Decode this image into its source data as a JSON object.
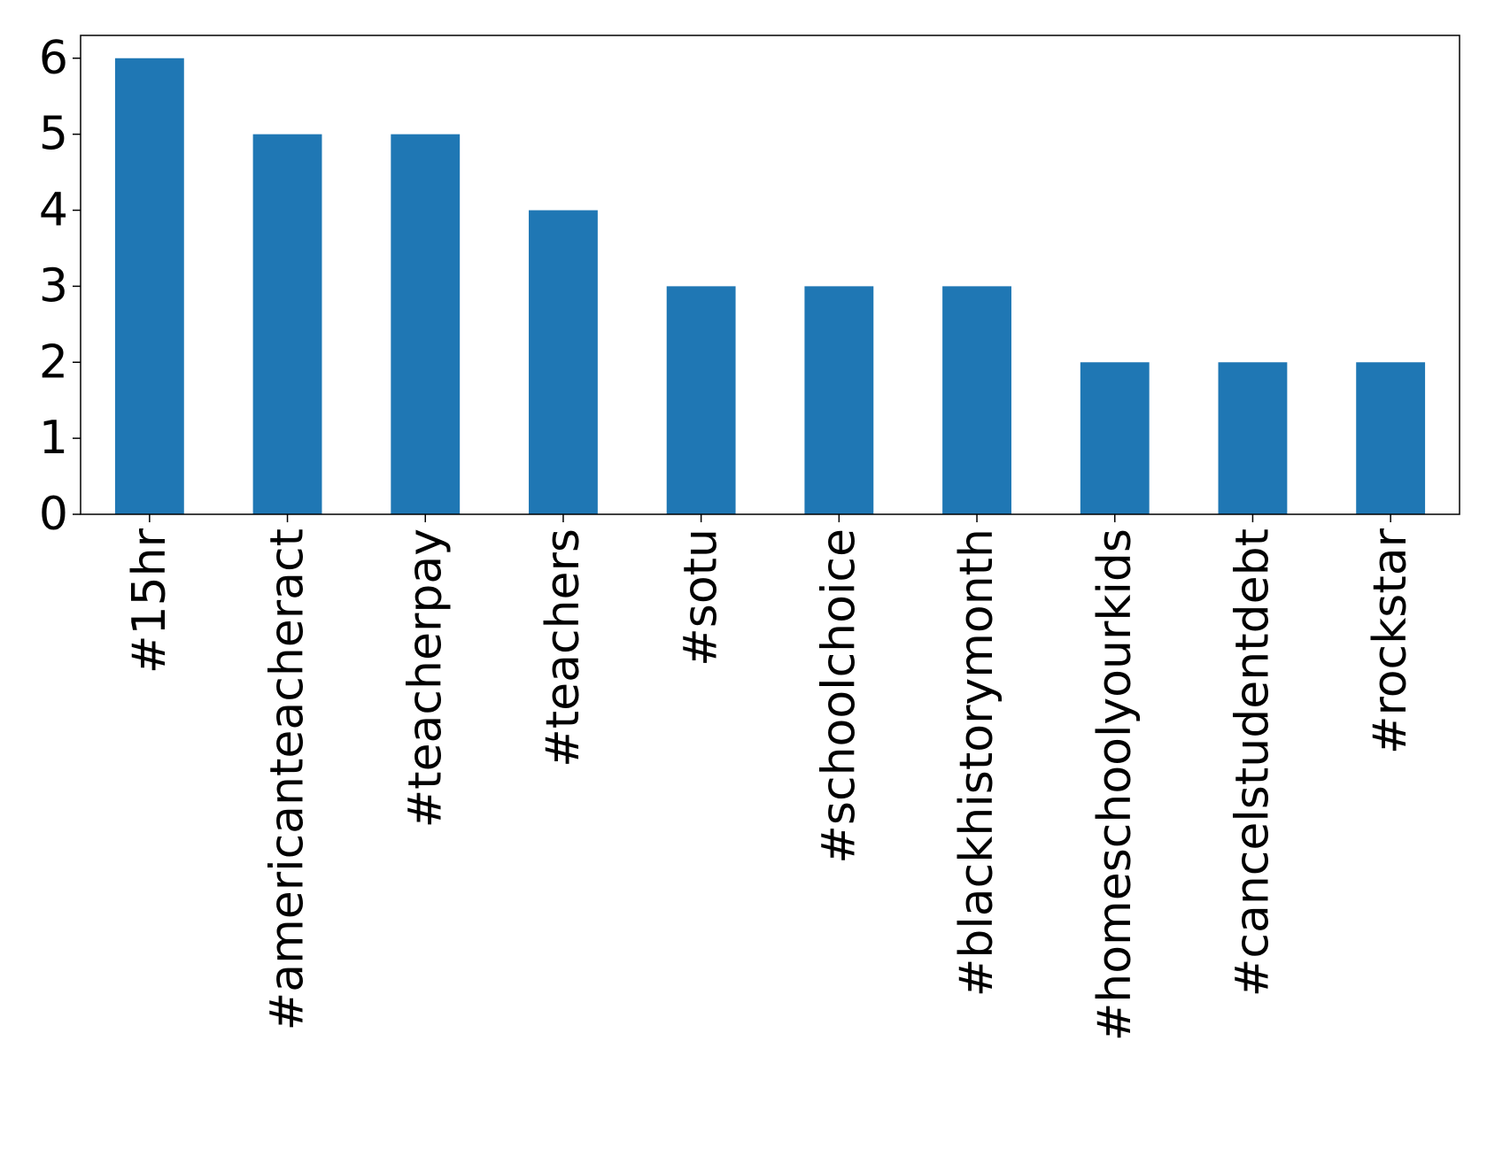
{
  "chart_data": {
    "type": "bar",
    "categories": [
      "#15hr",
      "#americanteacheract",
      "#teacherpay",
      "#teachers",
      "#sotu",
      "#schoolchoice",
      "#blackhistorymonth",
      "#homeschoolyourkids",
      "#cancelstudentdebt",
      "#rockstar"
    ],
    "values": [
      6,
      5,
      5,
      4,
      3,
      3,
      3,
      2,
      2,
      2
    ],
    "color": "#1f77b4",
    "ylim": [
      0,
      6.3
    ],
    "yticks": [
      0,
      1,
      2,
      3,
      4,
      5,
      6
    ],
    "grid": false
  }
}
